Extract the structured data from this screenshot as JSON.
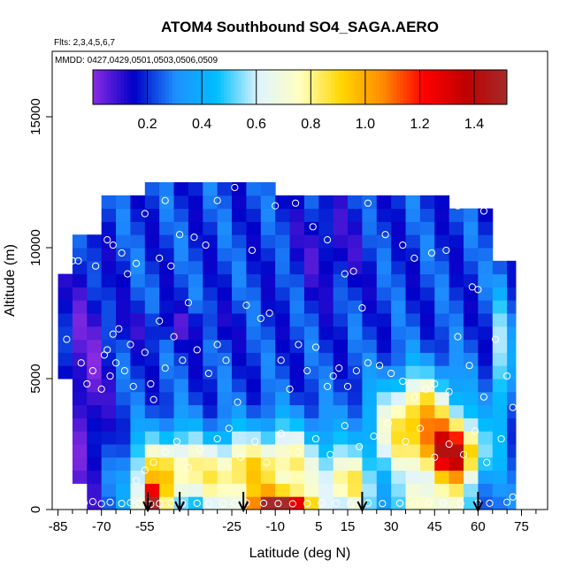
{
  "chart_data": {
    "type": "heatmap",
    "title": "ATOM4 Southbound SO4_SAGA.AERO",
    "flights_label": "Flts: 2,3,4,5,6,7",
    "dates_label": "MMDD: 0427,0429,0501,0503,0506,0509",
    "xlabel": "Latitude (deg N)",
    "ylabel": "Altitude (m)",
    "xlim": [
      -87,
      84
    ],
    "ylim": [
      0,
      17500
    ],
    "xticks": [
      -85,
      -70,
      -55,
      -40,
      -25,
      -10,
      5,
      15,
      30,
      45,
      60,
      75
    ],
    "xtick_labels": [
      "-85",
      "-70",
      "-55",
      "",
      "-25",
      "-10",
      "5",
      "15",
      "30",
      "45",
      "60",
      "75"
    ],
    "yticks": [
      0,
      5000,
      10000,
      15000
    ],
    "ytick_labels": [
      "0",
      "5000",
      "10000",
      "15000"
    ],
    "colorbar": {
      "range": [
        0,
        1.52
      ],
      "ticks": [
        0.2,
        0.4,
        0.6,
        0.8,
        1.0,
        1.2,
        1.4
      ],
      "tick_labels": [
        "0.2",
        "0.4",
        "0.6",
        "0.8",
        "1.0",
        "1.2",
        "1.4"
      ],
      "colors": [
        "#8a2be2",
        "#0000c8",
        "#1e90ff",
        "#00bfff",
        "#e0f4ff",
        "#ffffc0",
        "#ffd700",
        "#ff8c00",
        "#ff0000",
        "#c00000",
        "#a52a2a"
      ]
    },
    "lat_grid": [
      -85,
      -80,
      -75,
      -70,
      -65,
      -60,
      -55,
      -50,
      -45,
      -40,
      -35,
      -30,
      -25,
      -20,
      -15,
      -10,
      -5,
      0,
      5,
      10,
      15,
      20,
      25,
      30,
      35,
      40,
      45,
      50,
      55,
      60,
      65,
      70,
      73
    ],
    "alt_grid": [
      250,
      750,
      1250,
      1750,
      2250,
      2750,
      3250,
      3750,
      4250,
      4750,
      5250,
      5750,
      6250,
      6750,
      7250,
      7750,
      8250,
      8750,
      9250,
      9750,
      10250,
      10750,
      11250,
      11750,
      12250
    ],
    "profile_latitudes": [
      -54,
      -43,
      -21,
      20,
      60
    ],
    "observations": [
      [
        -82,
        6500
      ],
      [
        -80,
        9500
      ],
      [
        -77,
        5600
      ],
      [
        -75,
        4800
      ],
      [
        -73,
        5300
      ],
      [
        -70,
        4600
      ],
      [
        -69,
        5900
      ],
      [
        -68,
        6100
      ],
      [
        -67,
        5100
      ],
      [
        -66,
        6700
      ],
      [
        -65,
        5600
      ],
      [
        -64,
        6900
      ],
      [
        -62,
        5300
      ],
      [
        -60,
        6300
      ],
      [
        -59,
        4700
      ],
      [
        -55,
        6000
      ],
      [
        -53,
        4800
      ],
      [
        -52,
        4200
      ],
      [
        -50,
        7200
      ],
      [
        -48,
        5400
      ],
      [
        -45,
        6600
      ],
      [
        -42,
        5700
      ],
      [
        -40,
        7900
      ],
      [
        -37,
        6100
      ],
      [
        -33,
        5200
      ],
      [
        -30,
        6300
      ],
      [
        -27,
        5700
      ],
      [
        -23,
        4100
      ],
      [
        -20,
        7800
      ],
      [
        -15,
        7300
      ],
      [
        -12,
        7500
      ],
      [
        -8,
        5700
      ],
      [
        -5,
        4600
      ],
      [
        -2,
        6300
      ],
      [
        1,
        5300
      ],
      [
        4,
        6200
      ],
      [
        8,
        4700
      ],
      [
        10,
        5100
      ],
      [
        12,
        5400
      ],
      [
        15,
        4700
      ],
      [
        18,
        5300
      ],
      [
        22,
        5600
      ],
      [
        26,
        5500
      ],
      [
        30,
        5200
      ],
      [
        34,
        4900
      ],
      [
        38,
        4300
      ],
      [
        42,
        4600
      ],
      [
        45,
        4800
      ],
      [
        50,
        4500
      ],
      [
        53,
        6600
      ],
      [
        57,
        5500
      ],
      [
        62,
        4300
      ],
      [
        66,
        6500
      ],
      [
        70,
        5100
      ],
      [
        72,
        3900
      ],
      [
        -78,
        9500
      ],
      [
        -72,
        9300
      ],
      [
        -68,
        10300
      ],
      [
        -66,
        10100
      ],
      [
        -63,
        9800
      ],
      [
        -61,
        9000
      ],
      [
        -58,
        9400
      ],
      [
        -55,
        11300
      ],
      [
        -50,
        9600
      ],
      [
        -48,
        11800
      ],
      [
        -46,
        9300
      ],
      [
        -43,
        10500
      ],
      [
        -38,
        10400
      ],
      [
        -34,
        10100
      ],
      [
        -30,
        11800
      ],
      [
        -24,
        12300
      ],
      [
        -18,
        9900
      ],
      [
        -10,
        11600
      ],
      [
        -3,
        11700
      ],
      [
        3,
        10800
      ],
      [
        8,
        10300
      ],
      [
        14,
        9000
      ],
      [
        17,
        9100
      ],
      [
        20,
        7700
      ],
      [
        22,
        11700
      ],
      [
        28,
        10500
      ],
      [
        34,
        10100
      ],
      [
        38,
        9600
      ],
      [
        44,
        9800
      ],
      [
        49,
        9900
      ],
      [
        53,
        11600
      ],
      [
        58,
        8500
      ],
      [
        60,
        8400
      ],
      [
        62,
        11400
      ],
      [
        -76,
        250
      ],
      [
        -73,
        300
      ],
      [
        -70,
        220
      ],
      [
        -67,
        280
      ],
      [
        -63,
        230
      ],
      [
        -60,
        260
      ],
      [
        -57,
        240
      ],
      [
        -53,
        200
      ],
      [
        -50,
        230
      ],
      [
        -46,
        250
      ],
      [
        -42,
        230
      ],
      [
        -37,
        240
      ],
      [
        -33,
        220
      ],
      [
        -28,
        230
      ],
      [
        -24,
        250
      ],
      [
        -20,
        260
      ],
      [
        -14,
        240
      ],
      [
        -9,
        230
      ],
      [
        -4,
        220
      ],
      [
        1,
        230
      ],
      [
        6,
        250
      ],
      [
        11,
        240
      ],
      [
        16,
        220
      ],
      [
        22,
        250
      ],
      [
        27,
        230
      ],
      [
        33,
        240
      ],
      [
        38,
        230
      ],
      [
        43,
        250
      ],
      [
        48,
        260
      ],
      [
        54,
        230
      ],
      [
        60,
        250
      ],
      [
        64,
        240
      ],
      [
        70,
        280
      ],
      [
        72,
        480
      ],
      [
        -58,
        1100
      ],
      [
        -55,
        1500
      ],
      [
        -52,
        1800
      ],
      [
        -48,
        2200
      ],
      [
        -44,
        2600
      ],
      [
        -40,
        1600
      ],
      [
        -36,
        2300
      ],
      [
        -30,
        2700
      ],
      [
        -26,
        3100
      ],
      [
        -22,
        2000
      ],
      [
        -17,
        2600
      ],
      [
        -13,
        1800
      ],
      [
        -8,
        2900
      ],
      [
        -2,
        2200
      ],
      [
        4,
        2700
      ],
      [
        9,
        2100
      ],
      [
        14,
        3200
      ],
      [
        19,
        2400
      ],
      [
        24,
        2800
      ],
      [
        29,
        3300
      ],
      [
        35,
        2600
      ],
      [
        40,
        3100
      ],
      [
        45,
        2000
      ],
      [
        50,
        2500
      ],
      [
        55,
        2100
      ],
      [
        59,
        3000
      ],
      [
        63,
        1800
      ],
      [
        68,
        2700
      ]
    ]
  }
}
